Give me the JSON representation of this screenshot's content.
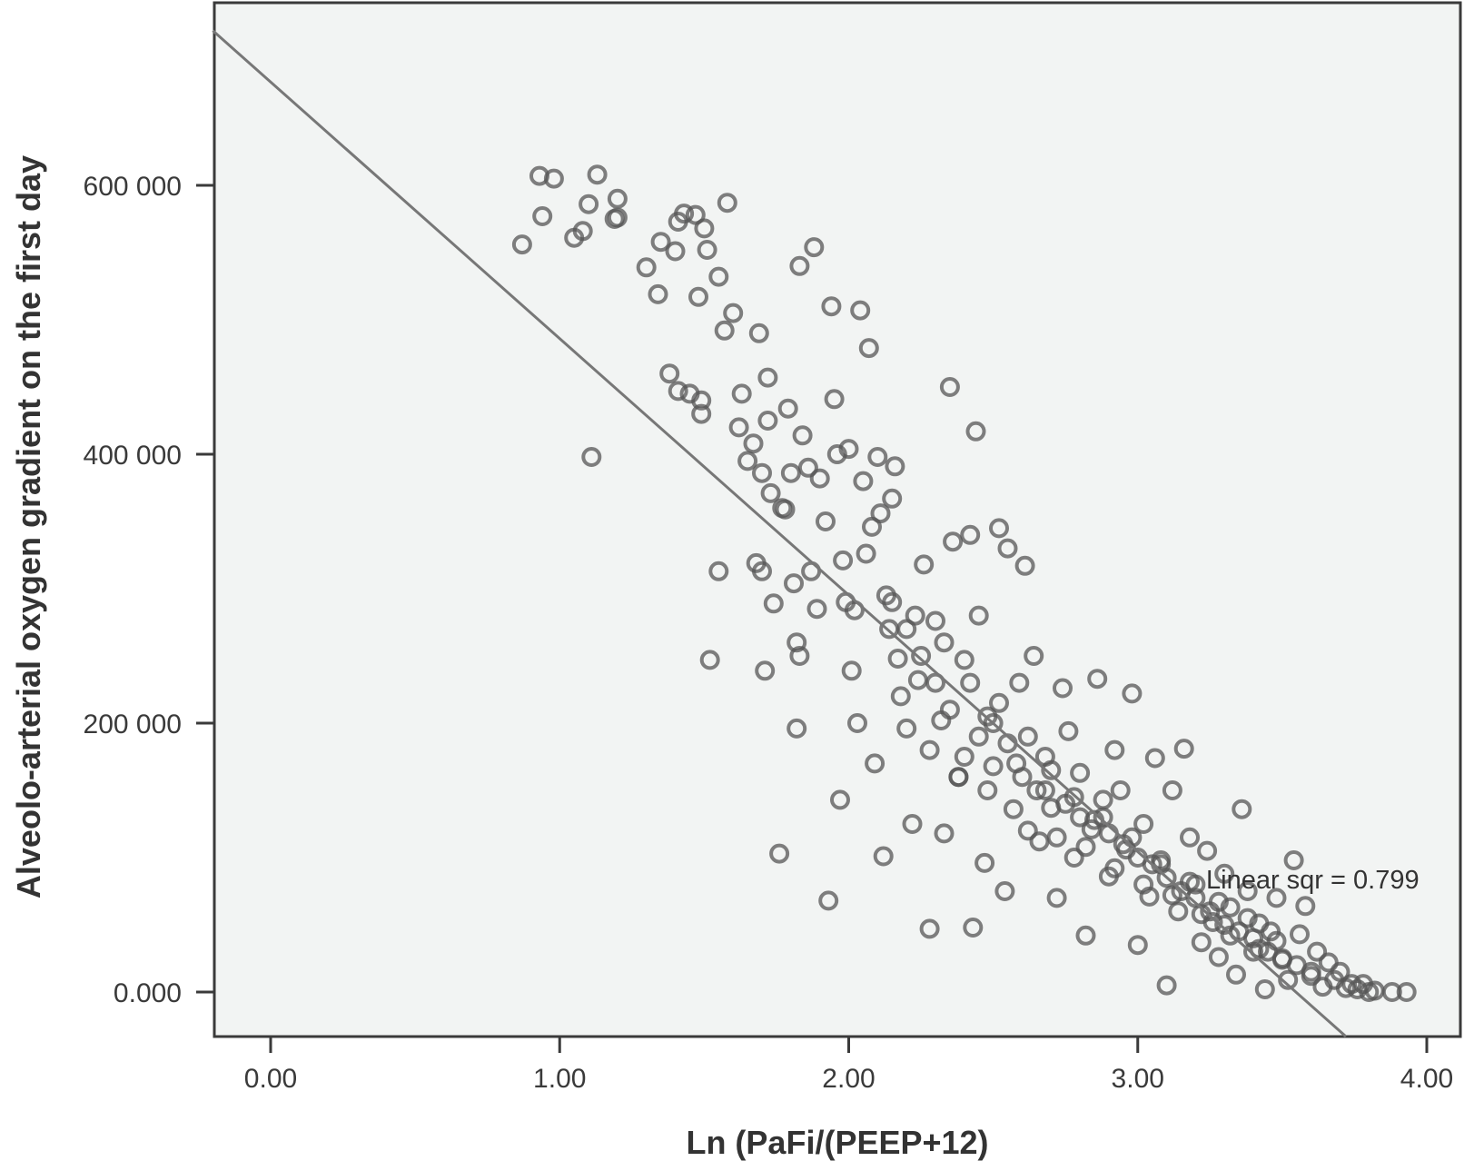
{
  "chart_data": {
    "type": "scatter",
    "title": "",
    "xlabel": "Ln (PaFi/(PEEP+12)",
    "ylabel": "Alveolo-arterial oxygen gradient on the first day",
    "xlim": [
      -0.2,
      4.3
    ],
    "ylim": [
      -33,
      735
    ],
    "x_ticks": [
      {
        "value": 0,
        "label": "0.00"
      },
      {
        "value": 1,
        "label": "1.00"
      },
      {
        "value": 2,
        "label": "2.00"
      },
      {
        "value": 3,
        "label": "3.00"
      },
      {
        "value": 4,
        "label": "4.00"
      }
    ],
    "y_ticks": [
      {
        "value": 0,
        "label": "0.000"
      },
      {
        "value": 200,
        "label": "200 000"
      },
      {
        "value": 400,
        "label": "400 000"
      },
      {
        "value": 600,
        "label": "600 000"
      }
    ],
    "grid": false,
    "fit_line": {
      "type": "linear",
      "x": [
        -0.2,
        3.72
      ],
      "y": [
        715,
        -33
      ]
    },
    "annotation": "Linear sqr = 0.799",
    "colors": {
      "plot_background": "#f2f4f3",
      "marker": "#555555",
      "line": "#777777"
    },
    "series": [
      {
        "marker": "open-circle",
        "points": [
          [
            0.87,
            556
          ],
          [
            0.93,
            607
          ],
          [
            0.94,
            577
          ],
          [
            0.98,
            605
          ],
          [
            1.05,
            561
          ],
          [
            1.08,
            566
          ],
          [
            1.1,
            586
          ],
          [
            1.11,
            398
          ],
          [
            1.13,
            608
          ],
          [
            1.19,
            575
          ],
          [
            1.2,
            590
          ],
          [
            1.2,
            576
          ],
          [
            1.3,
            539
          ],
          [
            1.34,
            519
          ],
          [
            1.35,
            558
          ],
          [
            1.38,
            460
          ],
          [
            1.4,
            551
          ],
          [
            1.41,
            573
          ],
          [
            1.41,
            447
          ],
          [
            1.43,
            579
          ],
          [
            1.45,
            445
          ],
          [
            1.47,
            578
          ],
          [
            1.48,
            517
          ],
          [
            1.49,
            430
          ],
          [
            1.49,
            440
          ],
          [
            1.5,
            568
          ],
          [
            1.51,
            552
          ],
          [
            1.52,
            247
          ],
          [
            1.55,
            532
          ],
          [
            1.55,
            313
          ],
          [
            1.57,
            492
          ],
          [
            1.58,
            587
          ],
          [
            1.6,
            505
          ],
          [
            1.62,
            420
          ],
          [
            1.63,
            445
          ],
          [
            1.65,
            395
          ],
          [
            1.67,
            408
          ],
          [
            1.68,
            319
          ],
          [
            1.69,
            490
          ],
          [
            1.7,
            386
          ],
          [
            1.7,
            313
          ],
          [
            1.71,
            239
          ],
          [
            1.72,
            457
          ],
          [
            1.72,
            425
          ],
          [
            1.73,
            371
          ],
          [
            1.74,
            289
          ],
          [
            1.76,
            103
          ],
          [
            1.77,
            360
          ],
          [
            1.78,
            359
          ],
          [
            1.79,
            434
          ],
          [
            1.8,
            386
          ],
          [
            1.81,
            304
          ],
          [
            1.82,
            260
          ],
          [
            1.82,
            196
          ],
          [
            1.83,
            250
          ],
          [
            1.83,
            540
          ],
          [
            1.84,
            414
          ],
          [
            1.86,
            390
          ],
          [
            1.87,
            313
          ],
          [
            1.88,
            554
          ],
          [
            1.89,
            285
          ],
          [
            1.9,
            382
          ],
          [
            1.92,
            350
          ],
          [
            1.93,
            68
          ],
          [
            1.94,
            510
          ],
          [
            1.95,
            441
          ],
          [
            1.96,
            400
          ],
          [
            1.97,
            143
          ],
          [
            1.98,
            321
          ],
          [
            1.99,
            290
          ],
          [
            2.0,
            404
          ],
          [
            2.01,
            239
          ],
          [
            2.02,
            284
          ],
          [
            2.03,
            200
          ],
          [
            2.04,
            507
          ],
          [
            2.05,
            380
          ],
          [
            2.06,
            326
          ],
          [
            2.07,
            479
          ],
          [
            2.08,
            346
          ],
          [
            2.09,
            170
          ],
          [
            2.1,
            398
          ],
          [
            2.11,
            356
          ],
          [
            2.12,
            101
          ],
          [
            2.13,
            295
          ],
          [
            2.14,
            270
          ],
          [
            2.15,
            367
          ],
          [
            2.16,
            391
          ],
          [
            2.17,
            248
          ],
          [
            2.18,
            220
          ],
          [
            2.2,
            196
          ],
          [
            2.22,
            125
          ],
          [
            2.24,
            232
          ],
          [
            2.26,
            318
          ],
          [
            2.28,
            47
          ],
          [
            2.3,
            276
          ],
          [
            2.32,
            202
          ],
          [
            2.33,
            118
          ],
          [
            2.35,
            450
          ],
          [
            2.36,
            335
          ],
          [
            2.38,
            160
          ],
          [
            2.4,
            247
          ],
          [
            2.42,
            340
          ],
          [
            2.43,
            48
          ],
          [
            2.44,
            417
          ],
          [
            2.45,
            280
          ],
          [
            2.47,
            96
          ],
          [
            2.48,
            205
          ],
          [
            2.5,
            168
          ],
          [
            2.52,
            345
          ],
          [
            2.54,
            75
          ],
          [
            2.55,
            330
          ],
          [
            2.57,
            136
          ],
          [
            2.59,
            230
          ],
          [
            2.61,
            317
          ],
          [
            2.62,
            190
          ],
          [
            2.64,
            250
          ],
          [
            2.66,
            112
          ],
          [
            2.68,
            175
          ],
          [
            2.7,
            137
          ],
          [
            2.72,
            70
          ],
          [
            2.74,
            226
          ],
          [
            2.76,
            194
          ],
          [
            2.78,
            100
          ],
          [
            2.8,
            163
          ],
          [
            2.82,
            42
          ],
          [
            2.84,
            121
          ],
          [
            2.86,
            233
          ],
          [
            2.88,
            143
          ],
          [
            2.9,
            86
          ],
          [
            2.92,
            180
          ],
          [
            2.94,
            150
          ],
          [
            2.96,
            106
          ],
          [
            2.98,
            222
          ],
          [
            3.0,
            35
          ],
          [
            3.02,
            125
          ],
          [
            3.04,
            71
          ],
          [
            3.06,
            174
          ],
          [
            3.08,
            95
          ],
          [
            3.1,
            5
          ],
          [
            3.12,
            150
          ],
          [
            3.14,
            60
          ],
          [
            3.16,
            181
          ],
          [
            3.18,
            115
          ],
          [
            3.2,
            80
          ],
          [
            3.22,
            37
          ],
          [
            3.24,
            105
          ],
          [
            3.26,
            52
          ],
          [
            3.28,
            26
          ],
          [
            3.3,
            88
          ],
          [
            3.32,
            63
          ],
          [
            3.34,
            13
          ],
          [
            3.36,
            136
          ],
          [
            3.38,
            75
          ],
          [
            3.4,
            30
          ],
          [
            3.42,
            51
          ],
          [
            3.44,
            2
          ],
          [
            3.46,
            45
          ],
          [
            3.48,
            70
          ],
          [
            3.5,
            24
          ],
          [
            3.52,
            9
          ],
          [
            3.54,
            98
          ],
          [
            3.56,
            43
          ],
          [
            3.58,
            64
          ],
          [
            3.6,
            15
          ],
          [
            3.62,
            30
          ],
          [
            3.64,
            4
          ],
          [
            3.66,
            22
          ],
          [
            3.68,
            9
          ],
          [
            3.7,
            15
          ],
          [
            3.72,
            3
          ],
          [
            3.74,
            6
          ],
          [
            3.76,
            2
          ],
          [
            3.78,
            6
          ],
          [
            3.8,
            0
          ],
          [
            3.82,
            1
          ],
          [
            3.88,
            0
          ],
          [
            3.93,
            0
          ],
          [
            2.5,
            200
          ],
          [
            2.55,
            185
          ],
          [
            2.6,
            160
          ],
          [
            2.65,
            150
          ],
          [
            2.7,
            165
          ],
          [
            2.75,
            140
          ],
          [
            2.8,
            130
          ],
          [
            2.85,
            128
          ],
          [
            2.9,
            118
          ],
          [
            2.95,
            110
          ],
          [
            3.0,
            100
          ],
          [
            3.05,
            95
          ],
          [
            3.1,
            85
          ],
          [
            3.15,
            75
          ],
          [
            3.2,
            70
          ],
          [
            3.25,
            60
          ],
          [
            3.3,
            50
          ],
          [
            3.35,
            45
          ],
          [
            3.4,
            40
          ],
          [
            3.45,
            30
          ],
          [
            3.5,
            25
          ],
          [
            3.55,
            20
          ],
          [
            3.6,
            12
          ],
          [
            2.58,
            170
          ],
          [
            2.68,
            150
          ],
          [
            2.78,
            145
          ],
          [
            2.88,
            130
          ],
          [
            2.98,
            115
          ],
          [
            3.08,
            98
          ],
          [
            3.18,
            82
          ],
          [
            3.28,
            67
          ],
          [
            3.38,
            55
          ],
          [
            3.48,
            38
          ],
          [
            2.62,
            120
          ],
          [
            2.72,
            115
          ],
          [
            2.82,
            108
          ],
          [
            2.92,
            92
          ],
          [
            3.02,
            80
          ],
          [
            3.12,
            72
          ],
          [
            3.22,
            58
          ],
          [
            3.32,
            42
          ],
          [
            3.42,
            32
          ],
          [
            2.4,
            175
          ],
          [
            2.45,
            190
          ],
          [
            2.35,
            210
          ],
          [
            2.3,
            230
          ],
          [
            2.25,
            250
          ],
          [
            2.2,
            270
          ],
          [
            2.15,
            290
          ],
          [
            2.28,
            180
          ],
          [
            2.38,
            160
          ],
          [
            2.48,
            150
          ],
          [
            2.42,
            230
          ],
          [
            2.52,
            215
          ],
          [
            2.33,
            260
          ],
          [
            2.23,
            280
          ]
        ]
      }
    ]
  }
}
